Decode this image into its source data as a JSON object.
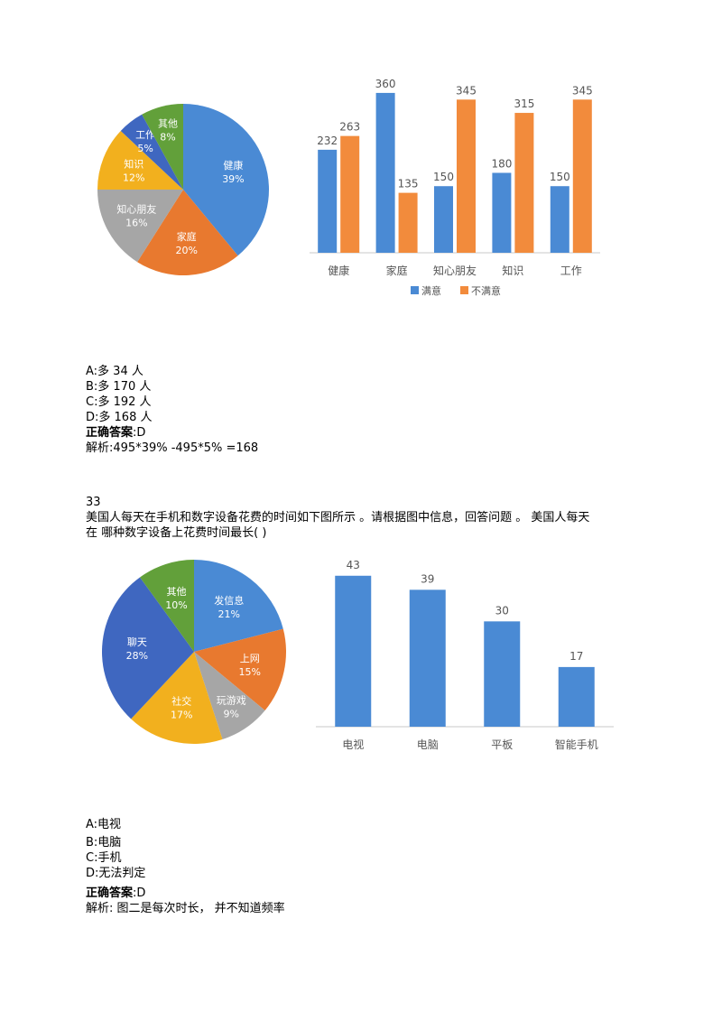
{
  "chart_data": [
    {
      "type": "pie",
      "slices": [
        {
          "label": "健康",
          "pct": "39%",
          "value": 39,
          "color": "#4a8ad4"
        },
        {
          "label": "家庭",
          "pct": "20%",
          "value": 20,
          "color": "#e8792f"
        },
        {
          "label": "知心朋友",
          "pct": "16%",
          "value": 16,
          "color": "#a6a6a6"
        },
        {
          "label": "知识",
          "pct": "12%",
          "value": 12,
          "color": "#f2b01e"
        },
        {
          "label": "工作",
          "pct": "5%",
          "value": 5,
          "color": "#3f67c0"
        },
        {
          "label": "其他",
          "pct": "8%",
          "value": 8,
          "color": "#62a03a"
        }
      ]
    },
    {
      "type": "bar",
      "categories": [
        "健康",
        "家庭",
        "知心朋友",
        "知识",
        "工作"
      ],
      "series": [
        {
          "name": "满意",
          "values": [
            232,
            360,
            150,
            180,
            150
          ],
          "color": "#4a8ad4"
        },
        {
          "name": "不满意",
          "values": [
            263,
            135,
            345,
            315,
            345
          ],
          "color": "#f28b3c"
        }
      ],
      "ylim": [
        0,
        370
      ],
      "legend": "bottom"
    },
    {
      "type": "pie",
      "slices": [
        {
          "label": "发信息",
          "pct": "21%",
          "value": 21,
          "color": "#4a8ad4"
        },
        {
          "label": "上网",
          "pct": "15%",
          "value": 15,
          "color": "#e8792f"
        },
        {
          "label": "玩游戏",
          "pct": "9%",
          "value": 9,
          "color": "#a6a6a6"
        },
        {
          "label": "社交",
          "pct": "17%",
          "value": 17,
          "color": "#f2b01e"
        },
        {
          "label": "聊天",
          "pct": "28%",
          "value": 28,
          "color": "#3f67c0"
        },
        {
          "label": "其他",
          "pct": "10%",
          "value": 10,
          "color": "#62a03a"
        }
      ]
    },
    {
      "type": "bar",
      "categories": [
        "电视",
        "电脑",
        "平板",
        "智能手机"
      ],
      "values": [
        43,
        39,
        30,
        17
      ],
      "color": "#4a8ad4",
      "ylim": [
        0,
        45
      ]
    }
  ],
  "q32": {
    "options": [
      "A:多 34 人",
      "B:多 170 人",
      "C:多 192 人",
      "D:多 168 人"
    ],
    "answer_label": "正确答案",
    "answer_value": ":D",
    "analysis": "解析:495*39% -495*5% =168"
  },
  "q33": {
    "number": "33",
    "stem_line1": "美国人每天在手机和数字设备花费的时间如下图所示 。请根据图中信息，回答问题 。 美国人每天",
    "stem_line2": "在 哪种数字设备上花费时间最长(   )",
    "options": [
      "A:电视",
      "B:电脑",
      "C:手机",
      "D:无法判定"
    ],
    "answer_label": "正确答案",
    "answer_value": ":D",
    "analysis": "解析: 图二是每次时长， 并不知道频率"
  }
}
